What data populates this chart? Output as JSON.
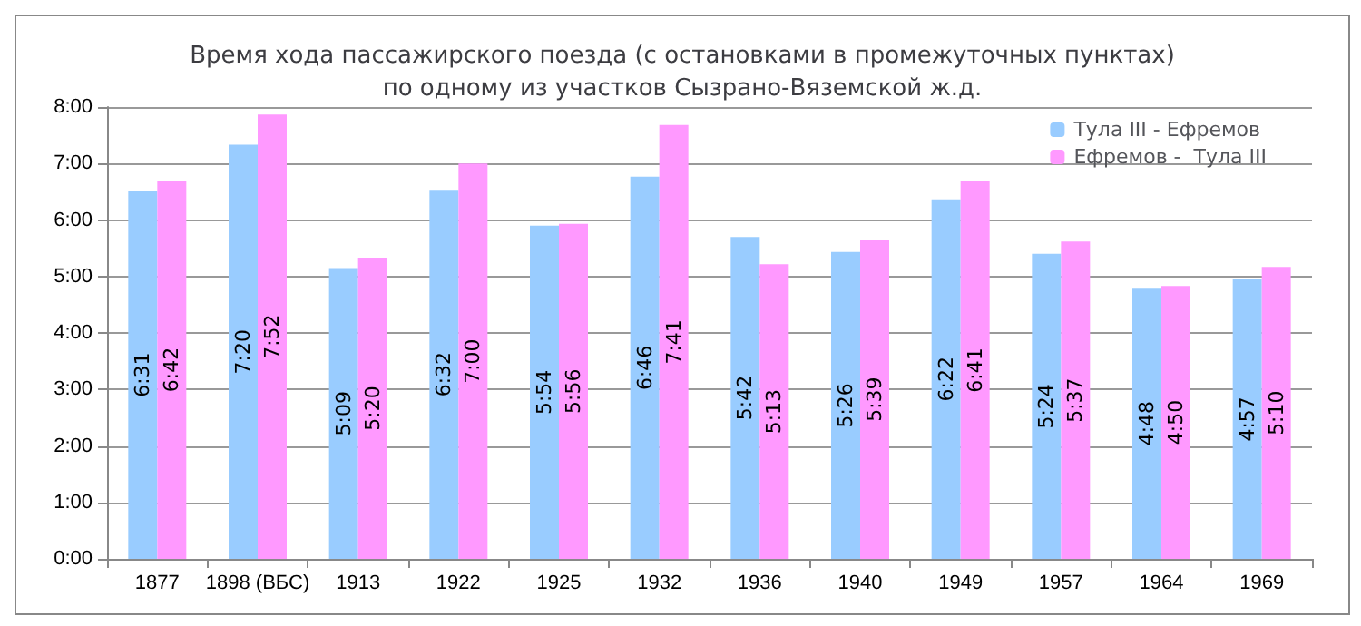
{
  "chart_data": {
    "type": "bar",
    "title": "Время хода пассажирского поезда (с остановками в промежуточных пунктах)\nпо одному из участков Сызрано-Вяземской ж.д.",
    "categories": [
      "1877",
      "1898 (ВБС)",
      "1913",
      "1922",
      "1925",
      "1932",
      "1936",
      "1940",
      "1949",
      "1957",
      "1964",
      "1969"
    ],
    "series": [
      {
        "name": "Тула III - Ефремов",
        "color": "#99ccff",
        "values": [
          6.5167,
          7.3333,
          5.15,
          6.5333,
          5.9,
          6.7667,
          5.7,
          5.4333,
          6.3667,
          5.4,
          4.8,
          4.95
        ],
        "value_labels": [
          "6:31",
          "7:20",
          "5:09",
          "6:32",
          "5:54",
          "6:46",
          "5:42",
          "5:26",
          "6:22",
          "5:24",
          "4:48",
          "4:57"
        ]
      },
      {
        "name": "Ефремов -  Тула III",
        "color": "#ff99ff",
        "values": [
          6.7,
          7.8667,
          5.3333,
          7,
          5.9333,
          7.6833,
          5.2167,
          5.65,
          6.6833,
          5.6167,
          4.8333,
          5.1667
        ],
        "value_labels": [
          "6:42",
          "7:52",
          "5:20",
          "7:00",
          "5:56",
          "7:41",
          "5:13",
          "5:39",
          "6:41",
          "5:37",
          "4:50",
          "5:10"
        ]
      }
    ],
    "ylim": [
      0,
      8
    ],
    "yticks": [
      {
        "value": 0,
        "label": "0:00"
      },
      {
        "value": 1,
        "label": "1:00"
      },
      {
        "value": 2,
        "label": "2:00"
      },
      {
        "value": 3,
        "label": "3:00"
      },
      {
        "value": 4,
        "label": "4:00"
      },
      {
        "value": 5,
        "label": "5:00"
      },
      {
        "value": 6,
        "label": "6:00"
      },
      {
        "value": 7,
        "label": "7:00"
      },
      {
        "value": 8,
        "label": "8:00"
      }
    ],
    "grid": "y",
    "legend": "top right"
  }
}
